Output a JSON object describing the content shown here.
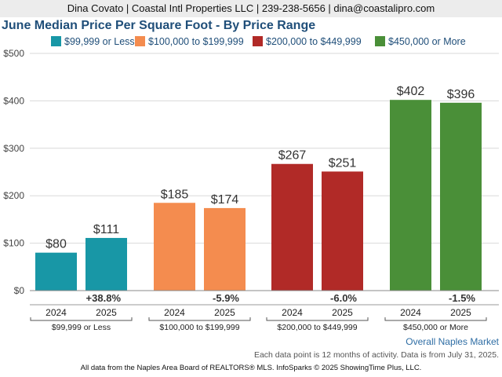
{
  "header": {
    "contact": "Dina Covato | Coastal Intl Properties LLC | 239-238-5656 | dina@coastalipro.com"
  },
  "chart_data": {
    "type": "bar",
    "title": "June Median Price Per Square Foot - By Price Range",
    "ylim": [
      0,
      500
    ],
    "yticks": [
      0,
      100,
      200,
      300,
      400,
      500
    ],
    "ytick_labels": [
      "$0",
      "$100",
      "$200",
      "$300",
      "$400",
      "$500"
    ],
    "legend_position": "top",
    "groups": [
      {
        "name": "$99,999 or Less",
        "color": "#1897a6",
        "years": [
          "2024",
          "2025"
        ],
        "values": [
          80,
          111
        ],
        "value_labels": [
          "$80",
          "$111"
        ],
        "change": "+38.8%"
      },
      {
        "name": "$100,000 to $199,999",
        "color": "#f48c4f",
        "years": [
          "2024",
          "2025"
        ],
        "values": [
          185,
          174
        ],
        "value_labels": [
          "$185",
          "$174"
        ],
        "change": "-5.9%"
      },
      {
        "name": "$200,000 to $449,999",
        "color": "#b12a27",
        "years": [
          "2024",
          "2025"
        ],
        "values": [
          267,
          251
        ],
        "value_labels": [
          "$267",
          "$251"
        ],
        "change": "-6.0%"
      },
      {
        "name": "$450,000 or More",
        "color": "#4a8f38",
        "years": [
          "2024",
          "2025"
        ],
        "values": [
          402,
          396
        ],
        "value_labels": [
          "$402",
          "$396"
        ],
        "change": "-1.5%"
      }
    ],
    "grid": true
  },
  "region": "Overall Naples Market",
  "note": "Each data point is 12 months of activity. Data is from July 31, 2025.",
  "footer": "All data from the Naples Area Board of REALTORS® MLS. InfoSparks © 2025 ShowingTime Plus, LLC."
}
